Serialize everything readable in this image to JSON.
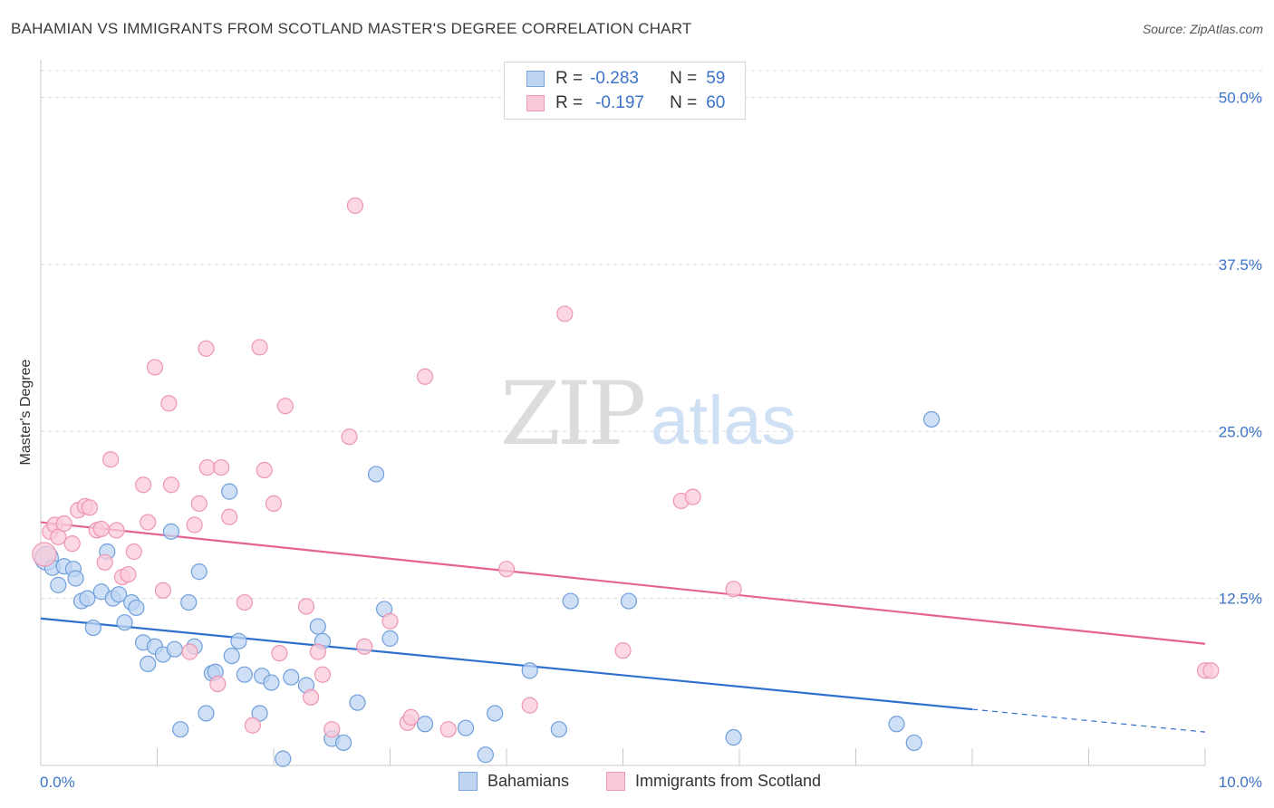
{
  "header": {
    "title": "BAHAMIAN VS IMMIGRANTS FROM SCOTLAND MASTER'S DEGREE CORRELATION CHART",
    "source": "Source: ZipAtlas.com"
  },
  "watermark": {
    "zip": "ZIP",
    "atlas": "atlas"
  },
  "legend": {
    "rows": [
      {
        "r_label": "R =",
        "r_value": "-0.283",
        "n_label": "N =",
        "n_value": "59",
        "fill": "#bdd4f3",
        "stroke": "#7aa6e0"
      },
      {
        "r_label": "R =",
        "r_value": "-0.197",
        "n_label": "N =",
        "n_value": "60",
        "fill": "#f9cbd9",
        "stroke": "#ef9ab5"
      }
    ]
  },
  "colors": {
    "blue_fill": "#bdd4f3",
    "blue_stroke": "#6f9fdc",
    "blue_line": "#2f6fcd",
    "pink_fill": "#f9cbd9",
    "pink_stroke": "#ee96b2",
    "pink_line": "#e4648f",
    "tick_label": "#3a73c8",
    "grid": "#d9d9d9"
  },
  "chart_data": {
    "type": "scatter",
    "title": "BAHAMIAN VS IMMIGRANTS FROM SCOTLAND MASTER'S DEGREE CORRELATION CHART",
    "xlabel": "",
    "ylabel": "Master's Degree",
    "xlim": [
      0,
      10
    ],
    "ylim": [
      0,
      52
    ],
    "x_tick_labels": [
      "0.0%",
      "10.0%"
    ],
    "y_ticks": [
      12.5,
      25.0,
      37.5,
      50.0
    ],
    "y_tick_labels": [
      "12.5%",
      "25.0%",
      "37.5%",
      "50.0%"
    ],
    "legend_position": "bottom-center",
    "series": [
      {
        "name": "Bahamians",
        "r": -0.283,
        "n": 59,
        "trend": {
          "x0": 0,
          "y0": 11.0,
          "x1": 8.0,
          "y1": 4.2,
          "dash_x1": 10,
          "dash_y1": 2.5
        },
        "points": [
          [
            0.05,
            15.5
          ],
          [
            0.1,
            14.8
          ],
          [
            0.15,
            13.5
          ],
          [
            0.2,
            14.9
          ],
          [
            0.28,
            14.7
          ],
          [
            0.3,
            14.0
          ],
          [
            0.35,
            12.3
          ],
          [
            0.4,
            12.5
          ],
          [
            0.45,
            10.3
          ],
          [
            0.52,
            13.0
          ],
          [
            0.57,
            16.0
          ],
          [
            0.62,
            12.5
          ],
          [
            0.67,
            12.8
          ],
          [
            0.72,
            10.7
          ],
          [
            0.78,
            12.2
          ],
          [
            0.82,
            11.8
          ],
          [
            0.88,
            9.2
          ],
          [
            0.92,
            7.6
          ],
          [
            0.98,
            8.9
          ],
          [
            1.05,
            8.3
          ],
          [
            1.12,
            17.5
          ],
          [
            1.15,
            8.7
          ],
          [
            1.2,
            2.7
          ],
          [
            1.27,
            12.2
          ],
          [
            1.32,
            8.9
          ],
          [
            1.36,
            14.5
          ],
          [
            1.42,
            3.9
          ],
          [
            1.47,
            6.9
          ],
          [
            1.5,
            7.0
          ],
          [
            1.62,
            20.5
          ],
          [
            1.64,
            8.2
          ],
          [
            1.7,
            9.3
          ],
          [
            1.75,
            6.8
          ],
          [
            1.88,
            3.9
          ],
          [
            1.9,
            6.7
          ],
          [
            1.98,
            6.2
          ],
          [
            2.08,
            0.5
          ],
          [
            2.15,
            6.6
          ],
          [
            2.28,
            6.0
          ],
          [
            2.38,
            10.4
          ],
          [
            2.42,
            9.3
          ],
          [
            2.5,
            2.0
          ],
          [
            2.6,
            1.7
          ],
          [
            2.72,
            4.7
          ],
          [
            2.88,
            21.8
          ],
          [
            2.95,
            11.7
          ],
          [
            3.0,
            9.5
          ],
          [
            3.3,
            3.1
          ],
          [
            3.65,
            2.8
          ],
          [
            3.82,
            0.8
          ],
          [
            3.9,
            3.9
          ],
          [
            4.2,
            7.1
          ],
          [
            4.45,
            2.7
          ],
          [
            4.55,
            12.3
          ],
          [
            5.05,
            12.3
          ],
          [
            5.95,
            2.1
          ],
          [
            7.35,
            3.1
          ],
          [
            7.5,
            1.7
          ],
          [
            7.65,
            25.9
          ]
        ]
      },
      {
        "name": "Immigrants from Scotland",
        "r": -0.197,
        "n": 60,
        "trend": {
          "x0": 0,
          "y0": 18.2,
          "x1": 10,
          "y1": 9.1
        },
        "points": [
          [
            0.03,
            15.8
          ],
          [
            0.08,
            17.5
          ],
          [
            0.12,
            18.0
          ],
          [
            0.15,
            17.1
          ],
          [
            0.2,
            18.1
          ],
          [
            0.27,
            16.6
          ],
          [
            0.32,
            19.1
          ],
          [
            0.38,
            19.4
          ],
          [
            0.42,
            19.3
          ],
          [
            0.48,
            17.6
          ],
          [
            0.52,
            17.7
          ],
          [
            0.55,
            15.2
          ],
          [
            0.6,
            22.9
          ],
          [
            0.65,
            17.6
          ],
          [
            0.7,
            14.1
          ],
          [
            0.75,
            14.3
          ],
          [
            0.8,
            16.0
          ],
          [
            0.88,
            21.0
          ],
          [
            0.92,
            18.2
          ],
          [
            0.98,
            29.8
          ],
          [
            1.05,
            13.1
          ],
          [
            1.1,
            27.1
          ],
          [
            1.12,
            21.0
          ],
          [
            1.28,
            8.5
          ],
          [
            1.32,
            18.0
          ],
          [
            1.36,
            19.6
          ],
          [
            1.42,
            31.2
          ],
          [
            1.43,
            22.3
          ],
          [
            1.52,
            6.1
          ],
          [
            1.55,
            22.3
          ],
          [
            1.62,
            18.6
          ],
          [
            1.75,
            12.2
          ],
          [
            1.82,
            3.0
          ],
          [
            1.88,
            31.3
          ],
          [
            1.92,
            22.1
          ],
          [
            2.0,
            19.6
          ],
          [
            2.05,
            8.4
          ],
          [
            2.1,
            26.9
          ],
          [
            2.28,
            11.9
          ],
          [
            2.32,
            5.1
          ],
          [
            2.38,
            8.5
          ],
          [
            2.42,
            6.8
          ],
          [
            2.5,
            2.7
          ],
          [
            2.65,
            24.6
          ],
          [
            2.7,
            41.9
          ],
          [
            2.78,
            8.9
          ],
          [
            3.0,
            10.8
          ],
          [
            3.15,
            3.2
          ],
          [
            3.18,
            3.6
          ],
          [
            3.3,
            29.1
          ],
          [
            3.5,
            2.7
          ],
          [
            4.0,
            14.7
          ],
          [
            4.2,
            4.5
          ],
          [
            4.5,
            33.8
          ],
          [
            5.0,
            8.6
          ],
          [
            5.5,
            19.8
          ],
          [
            5.6,
            20.1
          ],
          [
            5.95,
            13.2
          ],
          [
            10.0,
            7.1
          ],
          [
            10.05,
            7.1
          ]
        ]
      }
    ]
  }
}
